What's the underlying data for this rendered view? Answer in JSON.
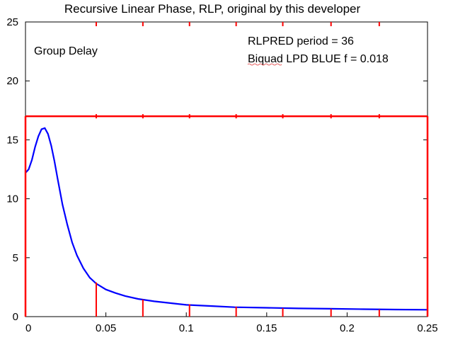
{
  "chart_data": {
    "type": "line",
    "title": "Recursive Linear Phase, RLP, original by this developer",
    "xlabel": "",
    "ylabel": "",
    "xlim": [
      0,
      0.25
    ],
    "ylim": [
      0,
      25
    ],
    "x_ticks": [
      0,
      0.05,
      0.1,
      0.15,
      0.2,
      0.25
    ],
    "x_tick_labels": [
      "0",
      "0.05",
      "0.1",
      "0.15",
      "0.2",
      "0.25"
    ],
    "y_ticks": [
      0,
      5,
      10,
      15,
      20,
      25
    ],
    "y_tick_labels": [
      "0",
      "5",
      "10",
      "15",
      "20",
      "25"
    ],
    "grid": false,
    "annotations": {
      "plot_label": "Group Delay",
      "line1": "RLPRED   period = 36",
      "line2": "Biquad LPD  BLUE   f = 0.018"
    },
    "series": [
      {
        "color": "#0000ff",
        "style": "curve",
        "x": [
          0,
          0.002,
          0.004,
          0.006,
          0.008,
          0.01,
          0.012,
          0.014,
          0.016,
          0.018,
          0.02,
          0.023,
          0.026,
          0.029,
          0.032,
          0.036,
          0.04,
          0.044,
          0.05,
          0.056,
          0.062,
          0.07,
          0.08,
          0.09,
          0.1,
          0.115,
          0.13,
          0.15,
          0.17,
          0.19,
          0.21,
          0.23,
          0.25
        ],
        "y": [
          12.2,
          12.5,
          13.3,
          14.4,
          15.3,
          15.9,
          16.0,
          15.5,
          14.5,
          13.2,
          11.7,
          9.5,
          7.8,
          6.3,
          5.2,
          4.1,
          3.3,
          2.8,
          2.3,
          2.0,
          1.75,
          1.5,
          1.3,
          1.15,
          1.0,
          0.9,
          0.8,
          0.75,
          0.7,
          0.67,
          0.63,
          0.6,
          0.58
        ]
      },
      {
        "color": "#ff0000",
        "style": "rlp-steps",
        "x": [
          0,
          0.044,
          0.073,
          0.102,
          0.131,
          0.16,
          0.19,
          0.22,
          0.25
        ],
        "y": [
          17,
          2.9,
          1.45,
          1.05,
          0.85,
          0.72,
          0.65,
          0.6,
          17
        ],
        "top": 17
      }
    ]
  }
}
